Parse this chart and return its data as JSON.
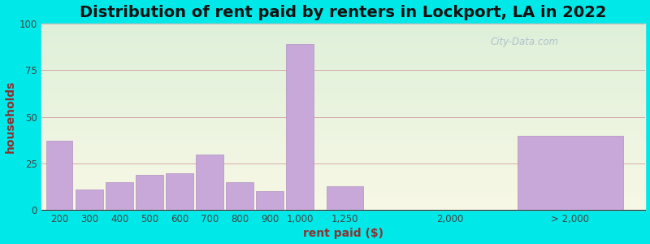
{
  "title": "Distribution of rent paid by renters in Lockport, LA in 2022",
  "xlabel": "rent paid ($)",
  "ylabel": "households",
  "bar_color": "#c8a8d8",
  "bar_edge_color": "#b090c0",
  "background_outer": "#00e8e8",
  "ylim": [
    0,
    100
  ],
  "yticks": [
    0,
    25,
    50,
    75,
    100
  ],
  "categories": [
    "200",
    "300",
    "400",
    "500",
    "600",
    "700",
    "800",
    "900",
    "1,000",
    "1,250",
    "2,000",
    "> 2,000"
  ],
  "values": [
    37,
    11,
    15,
    19,
    20,
    30,
    15,
    10,
    89,
    13,
    0,
    40
  ],
  "watermark": "City-Data.com",
  "title_fontsize": 14,
  "axis_label_fontsize": 10,
  "tick_fontsize": 8.5
}
